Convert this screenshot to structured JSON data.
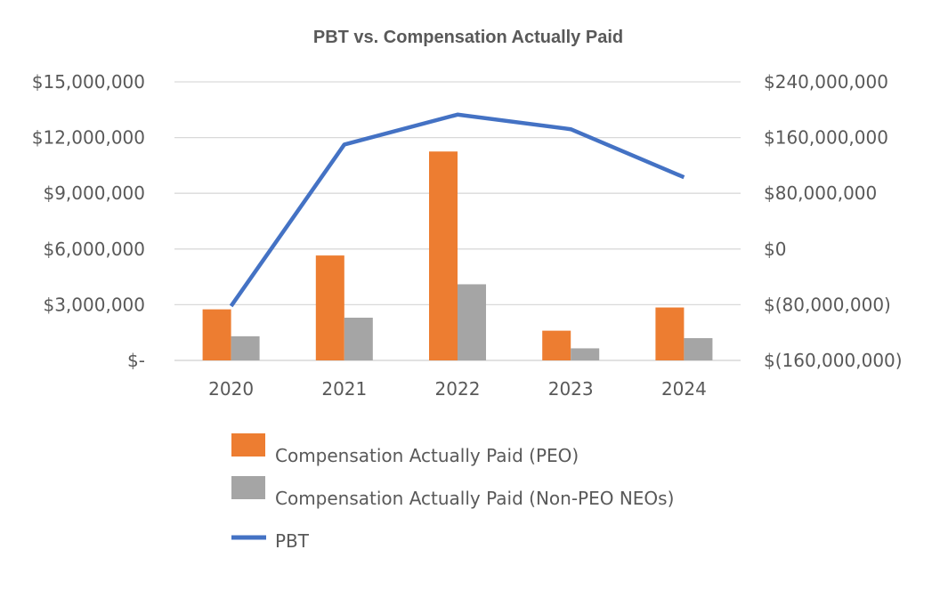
{
  "chart_data": {
    "type": "bar",
    "title": "PBT vs. Compensation Actually Paid",
    "categories": [
      "2020",
      "2021",
      "2022",
      "2023",
      "2024"
    ],
    "series": [
      {
        "name": "Compensation Actually Paid (PEO)",
        "type": "bar",
        "axis": "left",
        "color": "#ED7D31",
        "values": [
          2750000,
          5650000,
          11250000,
          1600000,
          2850000
        ]
      },
      {
        "name": "Compensation Actually Paid (Non-PEO NEOs)",
        "type": "bar",
        "axis": "left",
        "color": "#A5A5A5",
        "values": [
          1300000,
          2300000,
          4100000,
          650000,
          1200000
        ]
      },
      {
        "name": "PBT",
        "type": "line",
        "axis": "right",
        "color": "#4472C4",
        "values": [
          -82000000,
          150000000,
          193000000,
          172000000,
          103000000
        ]
      }
    ],
    "left_axis": {
      "ylim": [
        0,
        15000000
      ],
      "ticks": [
        0,
        3000000,
        6000000,
        9000000,
        12000000,
        15000000
      ],
      "tick_labels": [
        "$-",
        "$3,000,000",
        "$6,000,000",
        "$9,000,000",
        "$12,000,000",
        "$15,000,000"
      ]
    },
    "right_axis": {
      "ylim": [
        -160000000,
        240000000
      ],
      "ticks": [
        -160000000,
        -80000000,
        0,
        80000000,
        160000000,
        240000000
      ],
      "tick_labels": [
        "$(160,000,000)",
        "$(80,000,000)",
        "$0",
        "$80,000,000",
        "$160,000,000",
        "$240,000,000"
      ]
    },
    "grid": true,
    "legend_position": "bottom"
  }
}
